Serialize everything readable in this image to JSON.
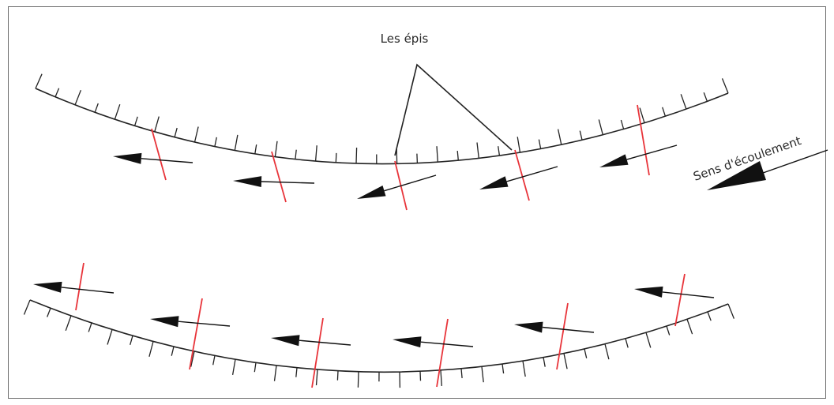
{
  "diagram": {
    "spur_label": "Les épis",
    "flow_label": "Sens d'écoulement"
  },
  "colors": {
    "bank": "#222222",
    "groyne": "#e8343a",
    "arrow": "#111111",
    "frame": "#6a6a6a"
  },
  "icons": {
    "flow_direction": "arrow-left-icon",
    "main_flow": "large-arrow-icon"
  }
}
